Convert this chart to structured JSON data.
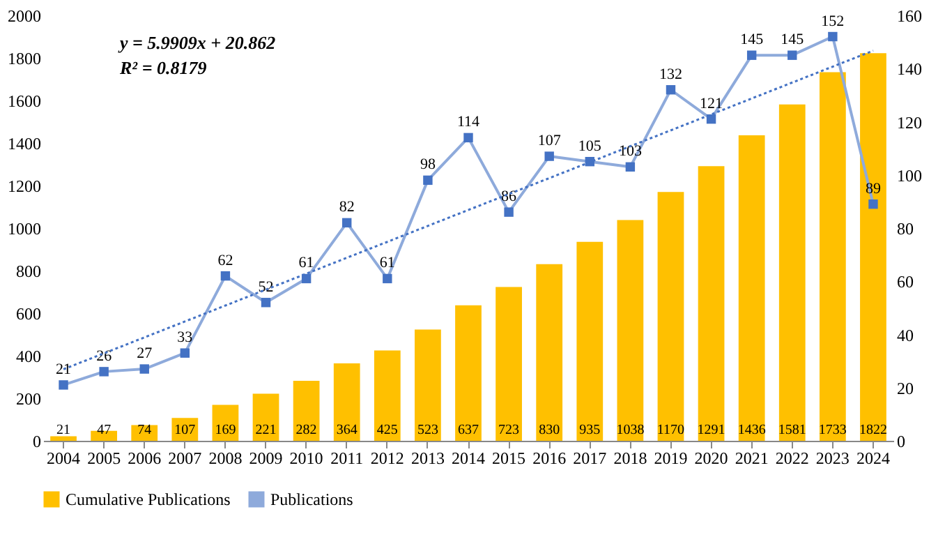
{
  "chart_data": {
    "type": "bar",
    "categories": [
      "2004",
      "2005",
      "2006",
      "2007",
      "2008",
      "2009",
      "2010",
      "2011",
      "2012",
      "2013",
      "2014",
      "2015",
      "2016",
      "2017",
      "2018",
      "2019",
      "2020",
      "2021",
      "2022",
      "2023",
      "2024"
    ],
    "series": [
      {
        "name": "Cumulative Publications",
        "type": "bar",
        "color": "#ffc000",
        "values": [
          21,
          47,
          74,
          107,
          169,
          221,
          282,
          364,
          425,
          523,
          637,
          723,
          830,
          935,
          1038,
          1170,
          1291,
          1436,
          1581,
          1733,
          1822
        ]
      },
      {
        "name": "Publications",
        "type": "line",
        "axis": "y2",
        "color": "#8eaadb",
        "marker": "square",
        "values": [
          21,
          26,
          27,
          33,
          62,
          52,
          61,
          82,
          61,
          98,
          114,
          86,
          107,
          105,
          103,
          132,
          121,
          145,
          145,
          152,
          89
        ]
      },
      {
        "type": "line",
        "axis": "y2",
        "color": "#4472c4",
        "line_style": "dotted",
        "values": [
          26.9,
          null,
          null,
          null,
          null,
          null,
          null,
          null,
          null,
          null,
          null,
          null,
          null,
          null,
          null,
          null,
          null,
          null,
          null,
          null,
          146.7
        ],
        "value_labels": [
          null,
          null,
          null,
          null,
          null,
          null,
          null,
          null,
          null,
          null,
          null,
          null,
          null,
          null,
          null,
          null,
          null,
          null,
          null,
          null,
          null
        ]
      }
    ],
    "data_labels": true,
    "ylim": [
      0,
      2000
    ],
    "yticks": [
      0,
      200,
      400,
      600,
      800,
      1000,
      1200,
      1400,
      1600,
      1800,
      2000
    ],
    "y2lim": [
      0,
      160
    ],
    "y2ticks": [
      0,
      20,
      40,
      60,
      80,
      100,
      120,
      140,
      160
    ],
    "annotations": [
      "y = 5.9909x + 20.862",
      "R² = 0.8179"
    ],
    "legend": "bottom",
    "grid": false
  }
}
